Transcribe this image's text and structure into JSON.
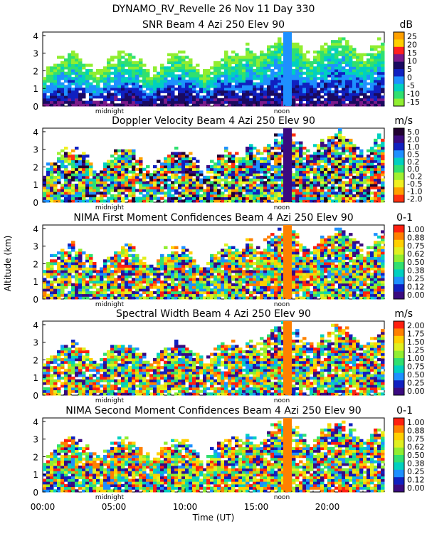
{
  "header": {
    "line1": "DYNAMO_RV_Revelle   26 Nov 11 Day 330"
  },
  "shared": {
    "ylabel": "Altitude (km)",
    "xlabel": "Time (UT)",
    "x_ticks": [
      "00:00",
      "05:00",
      "10:00",
      "15:00",
      "20:00"
    ],
    "y_ticks": [
      "0",
      "1",
      "2",
      "3",
      "4"
    ],
    "marker_midnight": "midnight",
    "marker_noon": "noon"
  },
  "chart_data": [
    {
      "type": "heatmap",
      "title": "SNR Beam 4 Azi 250 Elev 90",
      "unit": "dB",
      "xlim": [
        0,
        24
      ],
      "ylim": [
        0,
        4.2
      ],
      "colorbar": {
        "labels": [
          "25",
          "20",
          "15",
          "10",
          "5",
          "0",
          "-5",
          "-10",
          "-15"
        ],
        "colors": [
          "#ffa000",
          "#ffd000",
          "#ff2020",
          "#7a1a8a",
          "#1a0a60",
          "#1020c0",
          "#1e90ff",
          "#00d0c0",
          "#30e070",
          "#90ee30"
        ]
      }
    },
    {
      "type": "heatmap",
      "title": "Doppler Velocity Beam 4 Azi 250 Elev 90",
      "unit": "m/s",
      "xlim": [
        0,
        24
      ],
      "ylim": [
        0,
        4.2
      ],
      "colorbar": {
        "labels": [
          "5.0",
          "2.0",
          "1.0",
          "0.5",
          "0.2",
          "0.0",
          "-0.2",
          "-0.5",
          "-1.0",
          "-2.0"
        ],
        "colors": [
          "#200030",
          "#3a0a80",
          "#1020c0",
          "#1e90ff",
          "#00d0c0",
          "#30e070",
          "#a0f030",
          "#f0f020",
          "#ffa000",
          "#ff3010"
        ]
      }
    },
    {
      "type": "heatmap",
      "title": "NIMA First Moment Confidences Beam 4 Azi 250 Elev 90",
      "unit": "0-1",
      "xlim": [
        0,
        24
      ],
      "ylim": [
        0,
        4.2
      ],
      "colorbar": {
        "labels": [
          "1.00",
          "0.88",
          "0.75",
          "0.62",
          "0.50",
          "0.38",
          "0.25",
          "0.12",
          "0.00"
        ],
        "colors": [
          "#ff2010",
          "#ff8000",
          "#ffd000",
          "#e0f020",
          "#90ee30",
          "#30e070",
          "#00d0c0",
          "#1e90ff",
          "#1020c0",
          "#3a0a80"
        ]
      }
    },
    {
      "type": "heatmap",
      "title": "Spectral Width Beam 4 Azi 250 Elev 90",
      "unit": "m/s",
      "xlim": [
        0,
        24
      ],
      "ylim": [
        0,
        4.2
      ],
      "colorbar": {
        "labels": [
          "2.00",
          "1.75",
          "1.50",
          "1.25",
          "1.00",
          "0.75",
          "0.50",
          "0.25",
          "0.00"
        ],
        "colors": [
          "#ff2010",
          "#ff8000",
          "#ffd000",
          "#e0f020",
          "#90ee30",
          "#30e070",
          "#00d0c0",
          "#1e90ff",
          "#1020c0",
          "#3a0a80"
        ]
      }
    },
    {
      "type": "heatmap",
      "title": "NIMA Second Moment Confidences Beam 4 Azi 250 Elev 90",
      "unit": "0-1",
      "xlim": [
        0,
        24
      ],
      "ylim": [
        0,
        4.2
      ],
      "colorbar": {
        "labels": [
          "1.00",
          "0.88",
          "0.75",
          "0.62",
          "0.50",
          "0.38",
          "0.25",
          "0.12",
          "0.00"
        ],
        "colors": [
          "#ff2010",
          "#ff8000",
          "#ffd000",
          "#e0f020",
          "#90ee30",
          "#30e070",
          "#00d0c0",
          "#1e90ff",
          "#1020c0",
          "#3a0a80"
        ]
      }
    }
  ]
}
